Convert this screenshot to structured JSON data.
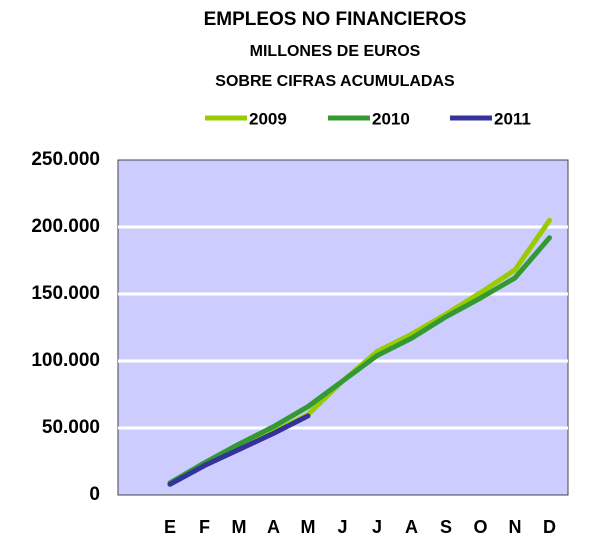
{
  "chart_data": {
    "type": "line",
    "title": "EMPLEOS NO FINANCIEROS",
    "subtitle": [
      "MILLONES DE EUROS",
      "SOBRE CIFRAS ACUMULADAS"
    ],
    "categories": [
      "E",
      "F",
      "M",
      "A",
      "M",
      "J",
      "J",
      "A",
      "S",
      "O",
      "N",
      "D"
    ],
    "series": [
      {
        "name": "2009",
        "color": "#99cc00",
        "values": [
          9000,
          22000,
          35000,
          47000,
          60000,
          85000,
          107000,
          120000,
          135000,
          151000,
          168000,
          205000
        ]
      },
      {
        "name": "2010",
        "color": "#339933",
        "values": [
          9000,
          24000,
          38000,
          51000,
          66000,
          85000,
          104000,
          117000,
          133000,
          147000,
          162000,
          192000
        ]
      },
      {
        "name": "2011",
        "color": "#333399",
        "values": [
          8000,
          22000,
          34000,
          46000,
          59000,
          null,
          null,
          null,
          null,
          null,
          null,
          null
        ]
      }
    ],
    "ylim": [
      0,
      250000
    ],
    "yticks": [
      0,
      {
        "value": 50000,
        "label": "50.000"
      },
      {
        "value": 100000,
        "label": "100.000"
      },
      {
        "value": 150000,
        "label": "150.000"
      },
      {
        "value": 200000,
        "label": "200.000"
      },
      {
        "value": 250000,
        "label": "250.000"
      }
    ],
    "grid": true,
    "legend": "top"
  }
}
